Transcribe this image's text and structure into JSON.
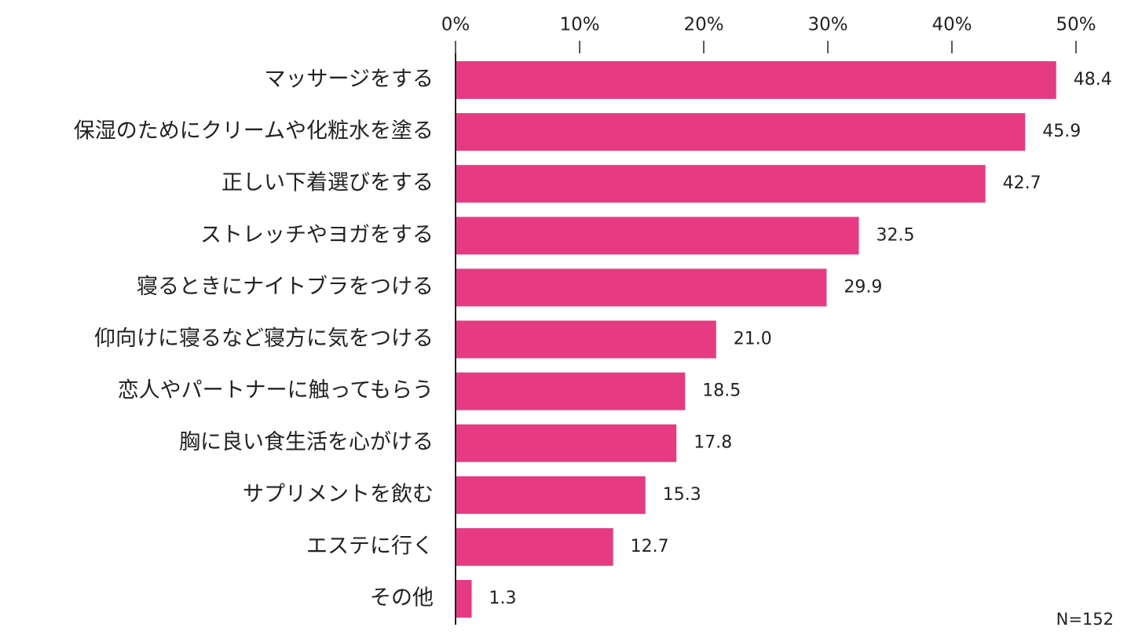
{
  "chart_data": {
    "type": "barh",
    "categories": [
      "マッサージをする",
      "保湿のためにクリームや化粧水を塗る",
      "正しい下着選びをする",
      "ストレッチやヨガをする",
      "寝るときにナイトブラをつける",
      "仰向けに寝るなど寝方に気をつける",
      "恋人やパートナーに触ってもらう",
      "胸に良い食生活を心がける",
      "サプリメントを飲む",
      "エステに行く",
      "その他"
    ],
    "values": [
      48.4,
      45.9,
      42.7,
      32.5,
      29.9,
      21.0,
      18.5,
      17.8,
      15.3,
      12.7,
      1.3
    ],
    "value_labels": [
      "48.4",
      "45.9",
      "42.7",
      "32.5",
      "29.9",
      "21.0",
      "18.5",
      "17.8",
      "15.3",
      "12.7",
      "1.3"
    ],
    "color": "#e63b82",
    "xlim": [
      0,
      50
    ],
    "xticks": [
      {
        "value": 0,
        "label": "0%"
      },
      {
        "value": 10,
        "label": "10%"
      },
      {
        "value": 20,
        "label": "20%"
      },
      {
        "value": 30,
        "label": "30%"
      },
      {
        "value": 40,
        "label": "40%"
      },
      {
        "value": 50,
        "label": "50%"
      }
    ],
    "annotation": "N=152"
  }
}
